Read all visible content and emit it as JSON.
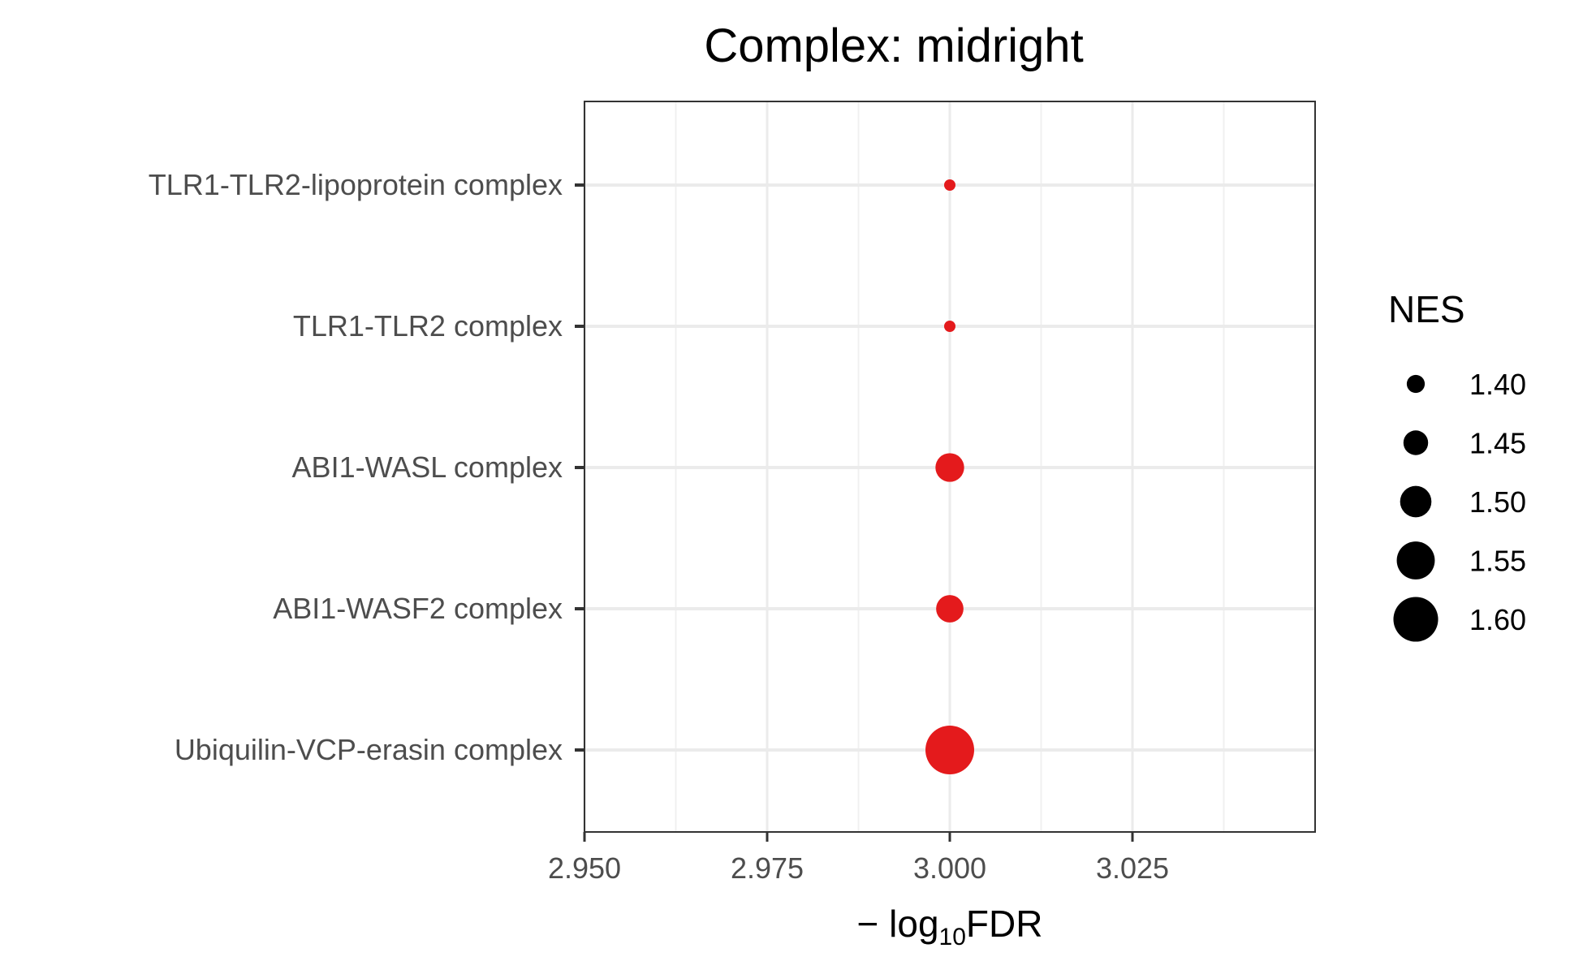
{
  "chart_data": {
    "type": "scatter",
    "title": "Complex: midright",
    "xlabel_parts": {
      "prefix": "− log",
      "subscript": "10",
      "suffix": "FDR"
    },
    "ylabel": "",
    "xlim": [
      2.95,
      3.05
    ],
    "x_ticks": [
      2.95,
      2.975,
      3.0,
      3.025
    ],
    "x_tick_labels": [
      "2.950",
      "2.975",
      "3.000",
      "3.025"
    ],
    "categories": [
      "TLR1-TLR2-lipoprotein complex",
      "TLR1-TLR2 complex",
      "ABI1-WASL complex",
      "ABI1-WASF2 complex",
      "Ubiquilin-VCP-erasin complex"
    ],
    "points": [
      {
        "category": "TLR1-TLR2-lipoprotein complex",
        "x": 3.0,
        "nes": 1.35
      },
      {
        "category": "TLR1-TLR2 complex",
        "x": 3.0,
        "nes": 1.35
      },
      {
        "category": "ABI1-WASL complex",
        "x": 3.0,
        "nes": 1.48
      },
      {
        "category": "ABI1-WASF2 complex",
        "x": 3.0,
        "nes": 1.47
      },
      {
        "category": "Ubiquilin-VCP-erasin complex",
        "x": 3.0,
        "nes": 1.63
      }
    ],
    "point_color": "#e41a1c",
    "legend": {
      "title": "NES",
      "placement": "right",
      "values": [
        1.4,
        1.45,
        1.5,
        1.55,
        1.6
      ],
      "labels": [
        "1.40",
        "1.45",
        "1.50",
        "1.55",
        "1.60"
      ],
      "color": "#000000"
    },
    "grid": true
  }
}
